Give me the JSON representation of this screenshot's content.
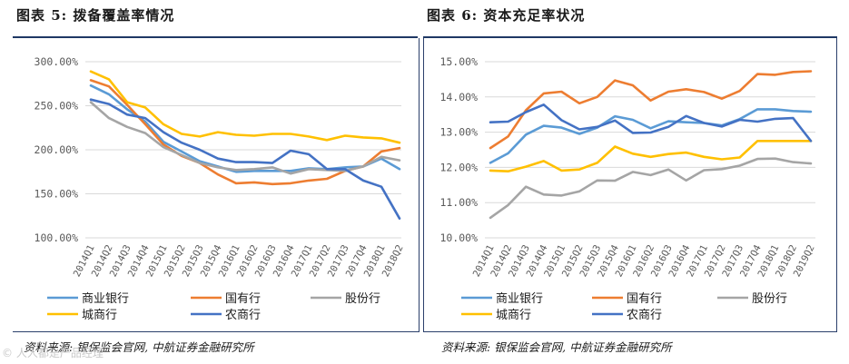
{
  "chart_data": [
    {
      "type": "line",
      "title": "图表 5:  拨备覆盖率情况",
      "source": "资料来源:  银保监会官网,  中航证券金融研究所",
      "ylim": [
        100,
        300
      ],
      "yticks": [
        "100.00%",
        "150.00%",
        "200.00%",
        "250.00%",
        "300.00%"
      ],
      "ytick_values": [
        100,
        150,
        200,
        250,
        300
      ],
      "categories": [
        "2014Q1",
        "2014Q2",
        "2014Q3",
        "2014Q4",
        "2015Q1",
        "2015Q2",
        "2015Q3",
        "2015Q4",
        "2016Q1",
        "2016Q2",
        "2016Q3",
        "2016Q4",
        "2017Q1",
        "2017Q2",
        "2017Q3",
        "2017Q4",
        "2018Q1",
        "2018Q2"
      ],
      "series": [
        {
          "name": "商业银行",
          "color": "#5b9bd5",
          "values": [
            273,
            263,
            246,
            232,
            209,
            198,
            187,
            181,
            175,
            176,
            176,
            176,
            179,
            178,
            180,
            181,
            190,
            178
          ]
        },
        {
          "name": "国有行",
          "color": "#ed7d31",
          "values": [
            279,
            272,
            251,
            229,
            206,
            193,
            185,
            172,
            162,
            163,
            161,
            162,
            165,
            167,
            176,
            181,
            198,
            202
          ]
        },
        {
          "name": "股份行",
          "color": "#a5a5a5",
          "values": [
            254,
            236,
            226,
            219,
            203,
            194,
            185,
            180,
            177,
            178,
            180,
            173,
            178,
            177,
            176,
            181,
            192,
            188
          ]
        },
        {
          "name": "城商行",
          "color": "#ffc000",
          "values": [
            289,
            280,
            254,
            248,
            229,
            218,
            215,
            220,
            217,
            216,
            218,
            218,
            215,
            211,
            216,
            214,
            213,
            208
          ]
        },
        {
          "name": "农商行",
          "color": "#4472c4",
          "values": [
            257,
            252,
            240,
            236,
            220,
            208,
            200,
            190,
            186,
            186,
            185,
            199,
            195,
            178,
            178,
            165,
            158,
            122
          ]
        }
      ]
    },
    {
      "type": "line",
      "title": "图表 6:  资本充足率状况",
      "source": "资料来源:  银保监会官网,  中航证券金融研究所",
      "ylim": [
        10,
        15
      ],
      "yticks": [
        "10.00%",
        "11.00%",
        "12.00%",
        "13.00%",
        "14.00%",
        "15.00%"
      ],
      "ytick_values": [
        10,
        11,
        12,
        13,
        14,
        15
      ],
      "categories": [
        "2014Q1",
        "2014Q2",
        "2014Q3",
        "2014Q4",
        "2015Q1",
        "2015Q2",
        "2015Q3",
        "2015Q4",
        "2016Q1",
        "2016Q2",
        "2016Q3",
        "2016Q4",
        "2017Q1",
        "2017Q2",
        "2017Q3",
        "2017Q4",
        "2018Q1",
        "2018Q2",
        "2019Q2"
      ],
      "series": [
        {
          "name": "商业银行",
          "color": "#5b9bd5",
          "values": [
            12.13,
            12.4,
            12.93,
            13.18,
            13.13,
            12.95,
            13.13,
            13.45,
            13.35,
            13.11,
            13.31,
            13.28,
            13.26,
            13.19,
            13.37,
            13.65,
            13.65,
            13.6,
            13.58
          ]
        },
        {
          "name": "国有行",
          "color": "#ed7d31",
          "values": [
            12.55,
            12.88,
            13.62,
            14.1,
            14.15,
            13.82,
            14.0,
            14.47,
            14.33,
            13.9,
            14.15,
            14.22,
            14.14,
            13.95,
            14.17,
            14.65,
            14.63,
            14.71,
            14.73
          ]
        },
        {
          "name": "股份行",
          "color": "#a5a5a5",
          "values": [
            10.57,
            10.93,
            11.45,
            11.23,
            11.2,
            11.32,
            11.63,
            11.62,
            11.87,
            11.78,
            11.94,
            11.63,
            11.92,
            11.95,
            12.05,
            12.24,
            12.25,
            12.15,
            12.11
          ]
        },
        {
          "name": "城商行",
          "color": "#ffc000",
          "values": [
            11.91,
            11.89,
            12.02,
            12.18,
            11.91,
            11.94,
            12.13,
            12.59,
            12.39,
            12.3,
            12.38,
            12.42,
            12.3,
            12.23,
            12.28,
            12.75,
            12.75,
            12.75,
            12.75
          ]
        },
        {
          "name": "农商行",
          "color": "#4472c4",
          "values": [
            13.28,
            13.3,
            13.57,
            13.78,
            13.34,
            13.08,
            13.15,
            13.33,
            12.98,
            12.99,
            13.15,
            13.46,
            13.26,
            13.16,
            13.35,
            13.3,
            13.38,
            13.4,
            12.75
          ]
        }
      ]
    }
  ],
  "watermark": "© 人人都是产品经理"
}
